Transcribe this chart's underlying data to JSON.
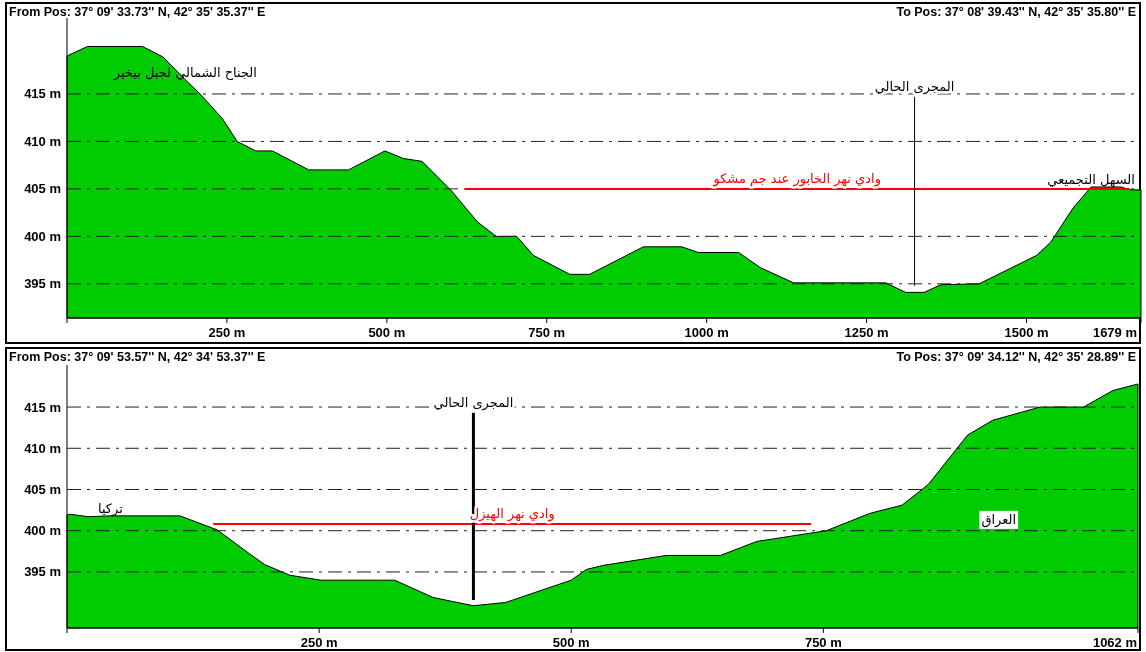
{
  "chart_data": [
    {
      "type": "area",
      "annotations": [
        "From Pos: 37° 09' 33.73'' N, 42° 35' 35.37'' E",
        "To Pos: 37° 08' 39.43'' N, 42° 35' 35.80'' E",
        {
          "text": "الجناح الشمالي لجبل بيخير",
          "x": 185,
          "y": 416.5
        },
        {
          "text": "السهل التجميعي",
          "x": 1601,
          "y": 405.2
        }
      ],
      "xlim": [
        0,
        1679
      ],
      "xticks": [
        {
          "value": 0,
          "label": null
        },
        {
          "value": 250,
          "label": "250 m"
        },
        {
          "value": 500,
          "label": "500 m"
        },
        {
          "value": 750,
          "label": "750 m"
        },
        {
          "value": 1000,
          "label": "1000 m"
        },
        {
          "value": 1250,
          "label": "1250 m"
        },
        {
          "value": 1500,
          "label": "1500 m"
        },
        {
          "value": 1679,
          "label": "1679 m"
        }
      ],
      "ylim": [
        391.4,
        423
      ],
      "yticks": [
        {
          "value": 395,
          "label": "395 m"
        },
        {
          "value": 400,
          "label": "400 m"
        },
        {
          "value": 405,
          "label": "405 m"
        },
        {
          "value": 410,
          "label": "410 m"
        },
        {
          "value": 415,
          "label": "415 m"
        }
      ],
      "grid": "y",
      "series": [
        {
          "color": "#00cc00",
          "x": [
            0,
            32,
            118,
            150,
            185,
            208,
            243,
            266,
            295,
            321,
            378,
            440,
            497,
            526,
            555,
            601,
            642,
            671,
            703,
            729,
            786,
            817,
            901,
            961,
            987,
            1050,
            1084,
            1136,
            1280,
            1311,
            1340,
            1366,
            1426,
            1516,
            1538,
            1573,
            1601,
            1648,
            1662,
            1679
          ],
          "values": [
            419,
            420,
            420,
            418.9,
            416.5,
            415,
            412.4,
            410,
            409,
            409,
            407,
            407,
            409,
            408.2,
            407.9,
            404.8,
            401.5,
            400,
            400,
            398,
            396,
            396,
            398.9,
            398.9,
            398.3,
            398.3,
            396.7,
            395.1,
            395.1,
            394.1,
            394.1,
            394.9,
            395,
            398,
            399.4,
            403,
            405.2,
            405.2,
            404.9,
            404.9
          ]
        },
        {
          "type": "line",
          "name": "وادي نهر الخابور عند جم مشكو",
          "color": "#ff0000",
          "x": [
            622,
            1661
          ],
          "values": [
            405,
            405
          ]
        },
        {
          "type": "line",
          "name": "المجرى الحالي",
          "color": "#000000",
          "x": [
            1325,
            1325
          ],
          "values": [
            394.8,
            414.7
          ]
        }
      ]
    },
    {
      "type": "area",
      "annotations": [
        "From Pos: 37° 09' 53.57'' N, 42° 34' 53.37'' E",
        "To Pos: 37° 09' 34.12'' N, 42° 35' 28.89'' E",
        {
          "text": "تركيا",
          "x": 43,
          "y": 401.8
        },
        "العراق"
      ],
      "xlim": [
        0,
        1062
      ],
      "xticks": [
        {
          "value": 0,
          "label": null
        },
        {
          "value": 250,
          "label": "250 m"
        },
        {
          "value": 500,
          "label": "500 m"
        },
        {
          "value": 750,
          "label": "750 m"
        },
        {
          "value": 1062,
          "label": "1062 m"
        }
      ],
      "ylim": [
        388.2,
        420.1
      ],
      "yticks": [
        {
          "value": 395,
          "label": "395 m"
        },
        {
          "value": 400,
          "label": "400 m"
        },
        {
          "value": 405,
          "label": "405 m"
        },
        {
          "value": 410,
          "label": "410 m"
        },
        {
          "value": 415,
          "label": "415 m"
        }
      ],
      "grid": "y",
      "series": [
        {
          "color": "#00cc00",
          "x": [
            0,
            3,
            21,
            43,
            112,
            149,
            181,
            196,
            221,
            252,
            308,
            325,
            363,
            403,
            435,
            500,
            515,
            532,
            594,
            648,
            684,
            753,
            796,
            828,
            854,
            893,
            918,
            965,
            1008,
            1037,
            1062
          ],
          "values": [
            401.9,
            402,
            401.7,
            401.8,
            401.8,
            400.1,
            397.2,
            395.9,
            394.6,
            394,
            394,
            394,
            391.9,
            390.9,
            391.3,
            394,
            395.3,
            395.8,
            397,
            397,
            398.7,
            400,
            402.1,
            403.1,
            405.6,
            411.6,
            413.4,
            415,
            415,
            417,
            417.8
          ]
        },
        {
          "type": "line",
          "name": "وادي نهر الهيزل",
          "color": "#ff0000",
          "x": [
            145,
            738
          ],
          "values": [
            400.8,
            400.8
          ]
        },
        {
          "type": "line",
          "name": "المجرى الحالي",
          "color": "#000000",
          "x": [
            403,
            403
          ],
          "values": [
            391.6,
            414.3
          ]
        }
      ]
    }
  ]
}
